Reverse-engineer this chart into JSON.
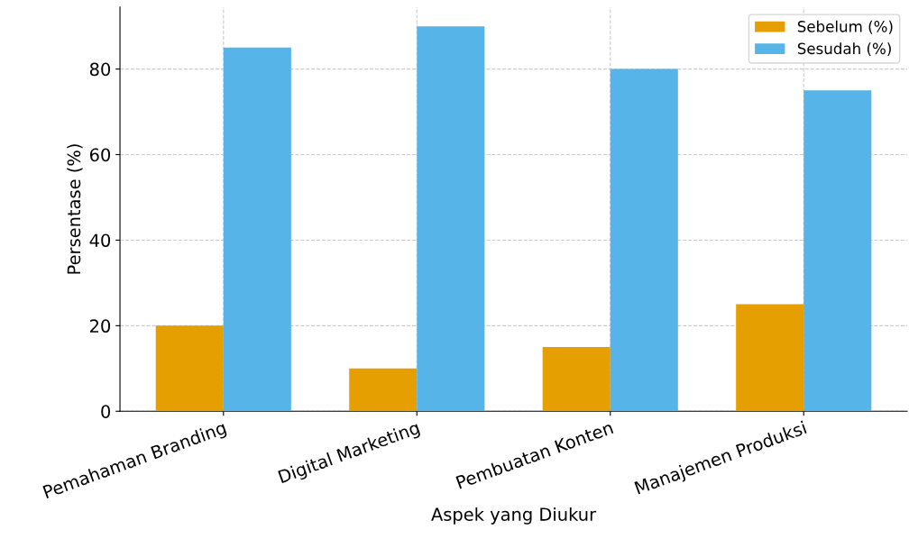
{
  "chart_data": {
    "type": "bar",
    "xlabel": "Aspek yang Diukur",
    "ylabel": "Persentase (%)",
    "categories": [
      "Pemahaman Branding",
      "Digital Marketing",
      "Pembuatan Konten",
      "Manajemen Produksi"
    ],
    "series": [
      {
        "name": "Sebelum (%)",
        "color": "#e69f00",
        "values": [
          20,
          10,
          15,
          25
        ]
      },
      {
        "name": "Sesudah (%)",
        "color": "#56b4e9",
        "values": [
          85,
          90,
          80,
          75
        ]
      }
    ],
    "ylim": [
      0,
      94.5
    ],
    "yticks": [
      0,
      20,
      40,
      60,
      80
    ],
    "grid": true,
    "legend": "top right"
  }
}
